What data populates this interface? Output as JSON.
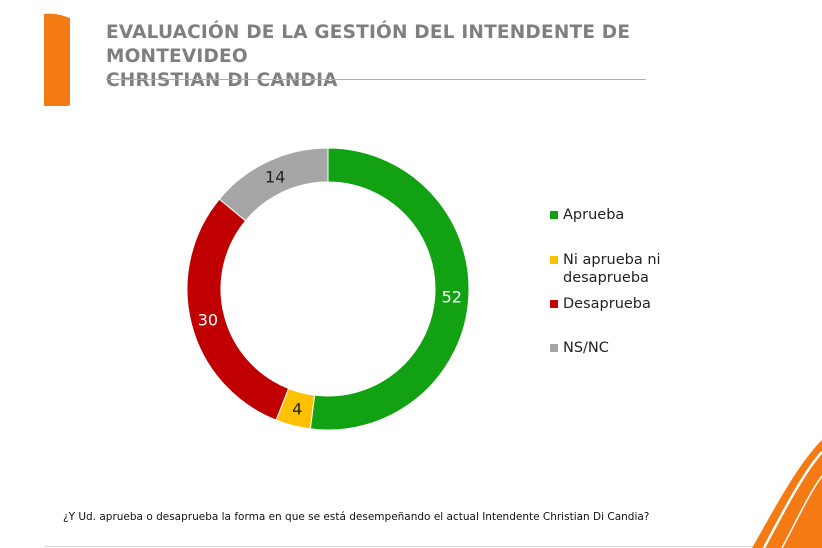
{
  "title": {
    "line1": "EVALUACIÓN DE LA GESTIÓN DEL INTENDENTE DE MONTEVIDEO",
    "line2": "CHRISTIAN DI CANDIA"
  },
  "question": "¿Y Ud. aprueba o desaprueba la forma en que se está desempeñando el actual Intendente Christian Di Candia?",
  "legend": [
    {
      "label": "Aprueba",
      "color": "#12a112"
    },
    {
      "label": "Ni aprueba ni desaprueba",
      "line1": "Ni aprueba ni",
      "line2": "desaprueba",
      "color": "#ffc000"
    },
    {
      "label": "Desaprueba",
      "color": "#c00000"
    },
    {
      "label": "NS/NC",
      "color": "#a6a6a6"
    }
  ],
  "chart_data": {
    "type": "pie",
    "variant": "doughnut",
    "categories": [
      "Aprueba",
      "Ni aprueba ni desaprueba",
      "Desaprueba",
      "NS/NC"
    ],
    "values": [
      52,
      4,
      30,
      14
    ],
    "colors": [
      "#12a112",
      "#ffc000",
      "#c00000",
      "#a6a6a6"
    ],
    "data_labels": [
      "52",
      "4",
      "30",
      "14"
    ],
    "legend_position": "right"
  },
  "theme": {
    "accent": "#f47a14"
  }
}
